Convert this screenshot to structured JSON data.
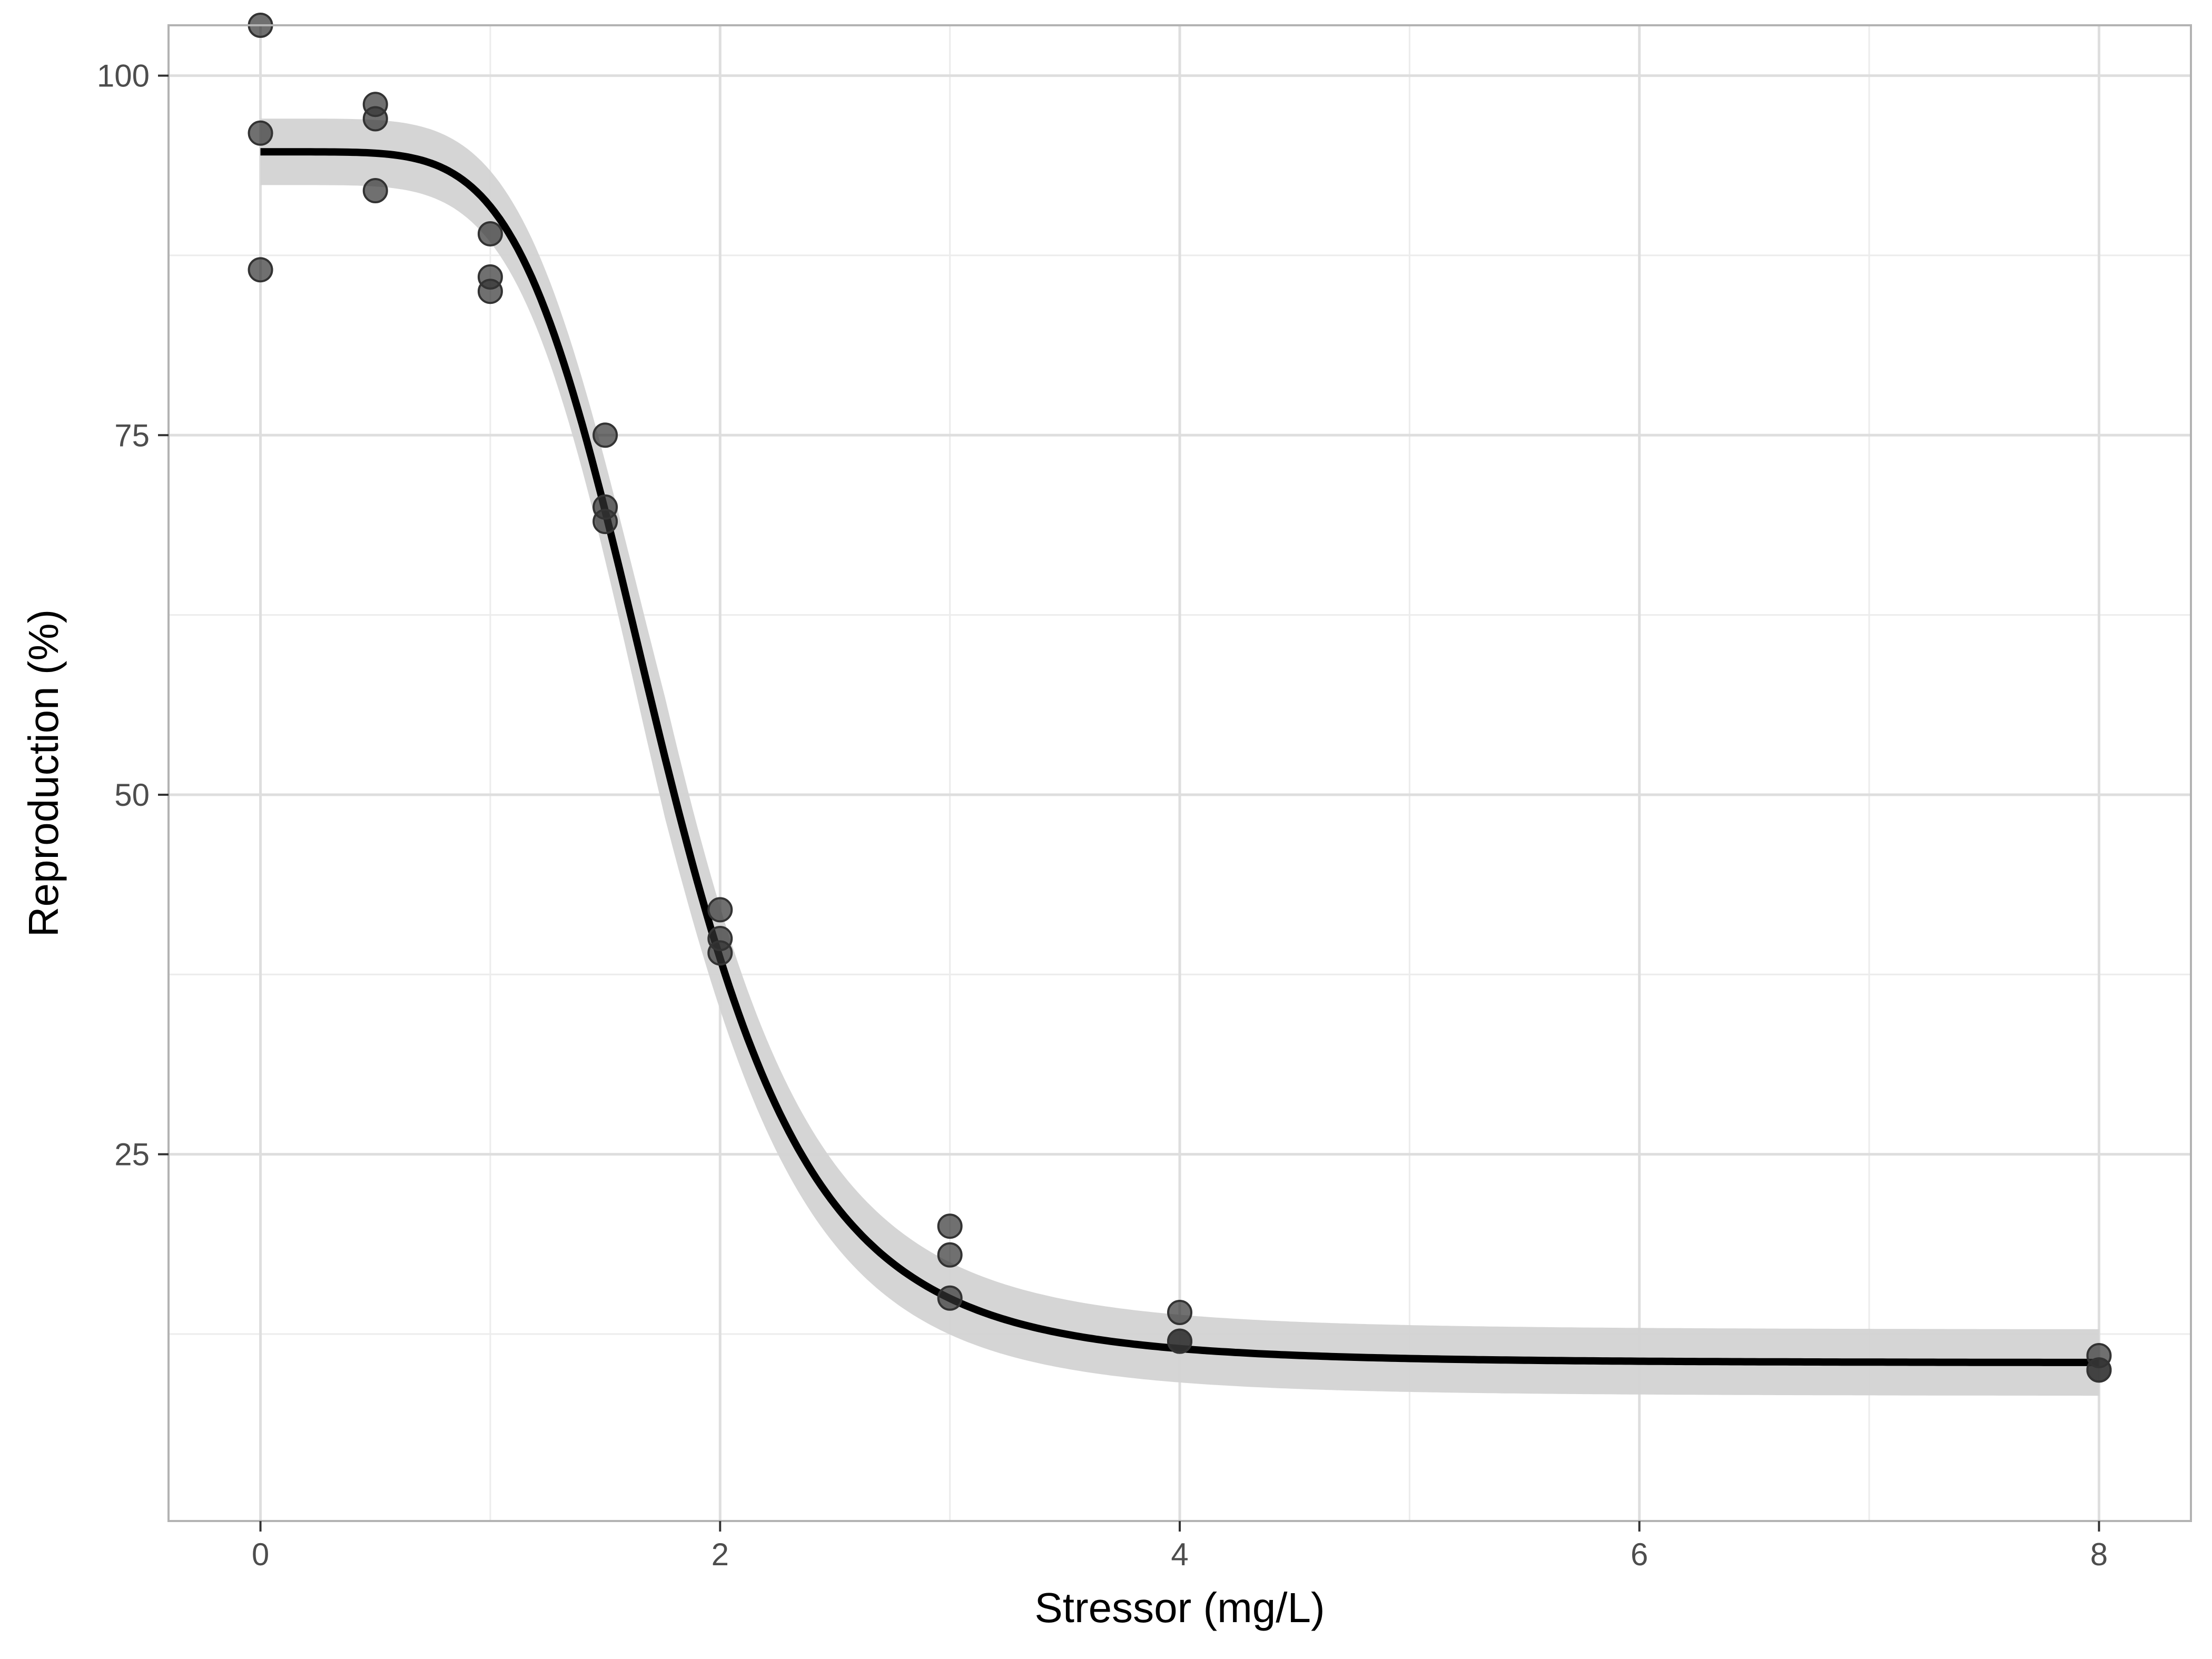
{
  "chart_data": {
    "type": "scatter",
    "title": "",
    "xlabel": "Stressor (mg/L)",
    "ylabel": "Reproduction (%)",
    "xlim": [
      -0.4,
      8.4
    ],
    "ylim": [
      -0.5,
      103.5
    ],
    "x_ticks": [
      0,
      2,
      4,
      6,
      8
    ],
    "x_tick_labels": [
      "0",
      "2",
      "4",
      "6",
      "8"
    ],
    "y_ticks": [
      25,
      50,
      75,
      100
    ],
    "y_tick_labels": [
      "25",
      "50",
      "75",
      "100"
    ],
    "x_minor_ticks": [
      1,
      3,
      5,
      7
    ],
    "y_minor_ticks": [
      12.5,
      37.5,
      62.5,
      87.5
    ],
    "grid": true,
    "points": {
      "x": [
        0,
        0,
        0,
        0.5,
        0.5,
        0.5,
        1,
        1,
        1,
        1.5,
        1.5,
        1.5,
        2,
        2,
        2,
        3,
        3,
        3,
        4,
        4,
        4,
        8,
        8,
        8
      ],
      "y": [
        103.5,
        96,
        86.5,
        98,
        97,
        92,
        89,
        86,
        85,
        75,
        70,
        69,
        42,
        40,
        39,
        20,
        18,
        15,
        14,
        12,
        12,
        11,
        10,
        10
      ]
    },
    "fit": {
      "model": "log-logistic",
      "lower": 10.5,
      "upper": 94.7,
      "ec50": 1.76,
      "slope": 5.4,
      "ci_halfwidth": 4.2
    },
    "colors": {
      "points": "#333333",
      "fit_line": "#000000",
      "ci_band": "#d3d3d3",
      "grid_major": "#dedede",
      "grid_minor": "#ececec",
      "panel_border": "#b3b3b3"
    }
  }
}
